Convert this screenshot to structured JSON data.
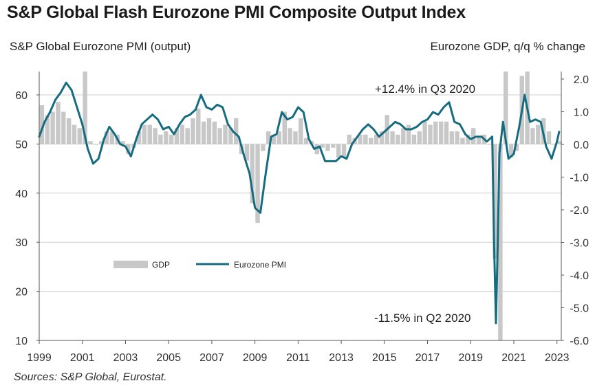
{
  "title": "S&P Global Flash Eurozone PMI Composite Output Index",
  "source": "Sources: S&P Global, Eurostat.",
  "chart_data": {
    "type": "bar+line",
    "title": "S&P Global Flash Eurozone PMI Composite Output Index",
    "ylabel_left": "S&P Global  Eurozone PMI (output)",
    "ylabel_right": "Eurozone GDP, q/q % change",
    "ylim_left": [
      10,
      65
    ],
    "ylim_right": [
      -6.0,
      2.0
    ],
    "left_ticks": [
      "60",
      "50",
      "40",
      "30",
      "20",
      "10"
    ],
    "right_ticks": [
      "2.0",
      "1.0",
      "0.0",
      "-1.0",
      "-2.0",
      "-3.0",
      "-4.0",
      "-5.0",
      "-6.0"
    ],
    "x_ticks": [
      "1999",
      "2001",
      "2003",
      "2005",
      "2007",
      "2009",
      "2011",
      "2013",
      "2015",
      "2017",
      "2019",
      "2021",
      "2023"
    ],
    "xlim": [
      1999.0,
      2023.2
    ],
    "grid": true,
    "legend": {
      "position": "lower-left",
      "gdp_label": "GDP",
      "pmi_label": "Eurozone PMI"
    },
    "annotations": {
      "q3_2020": "+12.4% in Q3 2020",
      "q2_2020": "-11.5% in Q2 2020"
    },
    "colors": {
      "gdp": "#c8c8c8",
      "pmi": "#156b80",
      "grid": "#cfcfcf"
    },
    "gdp_series": {
      "name": "GDP",
      "x": [
        1999.0,
        1999.25,
        1999.5,
        1999.75,
        2000.0,
        2000.25,
        2000.5,
        2000.75,
        2001.0,
        2001.25,
        2001.5,
        2001.75,
        2002.0,
        2002.25,
        2002.5,
        2002.75,
        2003.0,
        2003.25,
        2003.5,
        2003.75,
        2004.0,
        2004.25,
        2004.5,
        2004.75,
        2005.0,
        2005.25,
        2005.5,
        2005.75,
        2006.0,
        2006.25,
        2006.5,
        2006.75,
        2007.0,
        2007.25,
        2007.5,
        2007.75,
        2008.0,
        2008.25,
        2008.5,
        2008.75,
        2009.0,
        2009.25,
        2009.5,
        2009.75,
        2010.0,
        2010.25,
        2010.5,
        2010.75,
        2011.0,
        2011.25,
        2011.5,
        2011.75,
        2012.0,
        2012.25,
        2012.5,
        2012.75,
        2013.0,
        2013.25,
        2013.5,
        2013.75,
        2014.0,
        2014.25,
        2014.5,
        2014.75,
        2015.0,
        2015.25,
        2015.5,
        2015.75,
        2016.0,
        2016.25,
        2016.5,
        2016.75,
        2017.0,
        2017.25,
        2017.5,
        2017.75,
        2018.0,
        2018.25,
        2018.5,
        2018.75,
        2019.0,
        2019.25,
        2019.5,
        2019.75,
        2020.0,
        2020.25,
        2020.5,
        2020.75,
        2021.0,
        2021.25,
        2021.5,
        2021.75,
        2022.0,
        2022.25,
        2022.5,
        2022.75,
        2023.0
      ],
      "values": [
        1.2,
        0.9,
        1.0,
        1.3,
        1.0,
        0.8,
        0.6,
        0.5,
        2.3,
        0.1,
        0.0,
        0.1,
        0.4,
        0.4,
        0.3,
        0.1,
        -0.3,
        -0.1,
        0.4,
        0.6,
        0.6,
        0.5,
        0.3,
        0.4,
        0.3,
        0.5,
        0.6,
        0.5,
        0.8,
        1.1,
        0.7,
        0.8,
        0.7,
        0.5,
        0.6,
        0.5,
        0.8,
        -0.3,
        -0.5,
        -1.8,
        -2.4,
        -0.2,
        0.4,
        0.3,
        0.4,
        1.0,
        0.5,
        0.4,
        0.8,
        0.2,
        0.1,
        -0.3,
        -0.1,
        -0.2,
        -0.1,
        -0.4,
        -0.4,
        0.3,
        0.2,
        0.3,
        0.3,
        0.2,
        0.3,
        0.4,
        0.9,
        0.4,
        0.3,
        0.5,
        0.6,
        0.3,
        0.4,
        0.7,
        0.6,
        0.7,
        0.7,
        0.7,
        0.4,
        0.4,
        0.2,
        0.3,
        0.5,
        0.2,
        0.3,
        0.0,
        -3.5,
        -11.5,
        12.4,
        -0.4,
        -0.2,
        2.1,
        2.3,
        0.5,
        0.6,
        0.8,
        0.4,
        0.0,
        0.1
      ]
    },
    "pmi_series": {
      "name": "Eurozone PMI",
      "x": [
        1999.0,
        1999.25,
        1999.5,
        1999.75,
        2000.0,
        2000.25,
        2000.5,
        2000.75,
        2001.0,
        2001.25,
        2001.5,
        2001.75,
        2002.0,
        2002.25,
        2002.5,
        2002.75,
        2003.0,
        2003.25,
        2003.5,
        2003.75,
        2004.0,
        2004.25,
        2004.5,
        2004.75,
        2005.0,
        2005.25,
        2005.5,
        2005.75,
        2006.0,
        2006.25,
        2006.5,
        2006.75,
        2007.0,
        2007.25,
        2007.5,
        2007.75,
        2008.0,
        2008.25,
        2008.5,
        2008.75,
        2009.0,
        2009.25,
        2009.5,
        2009.75,
        2010.0,
        2010.25,
        2010.5,
        2010.75,
        2011.0,
        2011.25,
        2011.5,
        2011.75,
        2012.0,
        2012.25,
        2012.5,
        2012.75,
        2013.0,
        2013.25,
        2013.5,
        2013.75,
        2014.0,
        2014.25,
        2014.5,
        2014.75,
        2015.0,
        2015.25,
        2015.5,
        2015.75,
        2016.0,
        2016.25,
        2016.5,
        2016.75,
        2017.0,
        2017.25,
        2017.5,
        2017.75,
        2018.0,
        2018.25,
        2018.5,
        2018.75,
        2019.0,
        2019.25,
        2019.5,
        2019.75,
        2020.0,
        2020.08,
        2020.17,
        2020.25,
        2020.33,
        2020.5,
        2020.75,
        2021.0,
        2021.25,
        2021.5,
        2021.75,
        2022.0,
        2022.25,
        2022.5,
        2022.75,
        2023.0,
        2023.1
      ],
      "values": [
        51.5,
        54.5,
        56.5,
        59.0,
        60.5,
        62.5,
        61.0,
        57.5,
        54.0,
        49.0,
        46.0,
        47.0,
        51.0,
        53.5,
        52.0,
        50.0,
        49.5,
        47.5,
        51.0,
        54.0,
        55.0,
        56.0,
        55.0,
        53.0,
        53.5,
        52.0,
        54.0,
        55.5,
        56.0,
        57.0,
        60.0,
        57.5,
        57.0,
        58.0,
        57.5,
        54.0,
        52.5,
        51.5,
        47.5,
        44.0,
        37.0,
        36.0,
        44.0,
        51.5,
        52.0,
        56.5,
        55.0,
        55.5,
        57.5,
        56.5,
        51.0,
        49.0,
        49.5,
        46.5,
        46.5,
        46.5,
        47.5,
        47.0,
        50.0,
        51.5,
        53.0,
        54.0,
        53.0,
        51.5,
        52.5,
        53.5,
        54.5,
        54.0,
        53.0,
        53.0,
        53.5,
        54.5,
        55.0,
        56.5,
        56.0,
        57.5,
        58.5,
        54.5,
        54.0,
        52.0,
        51.0,
        51.5,
        51.5,
        50.5,
        51.5,
        31.0,
        13.5,
        29.0,
        48.0,
        54.5,
        47.0,
        48.0,
        53.5,
        60.0,
        54.5,
        55.0,
        54.5,
        49.5,
        47.0,
        50.5,
        52.5
      ]
    }
  }
}
